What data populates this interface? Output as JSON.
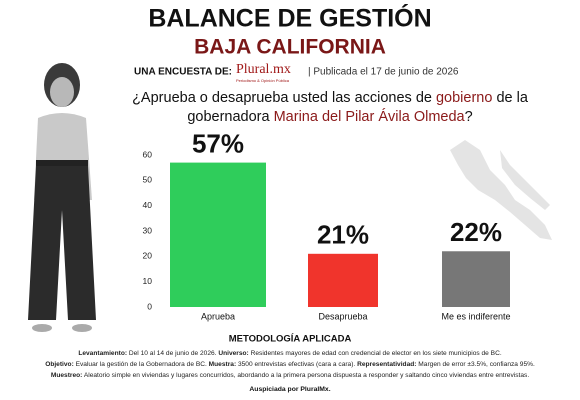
{
  "header": {
    "title": "BALANCE DE GESTIÓN",
    "subtitle": "BAJA CALIFORNIA",
    "survey_by": "UNA ENCUESTA DE:",
    "logo": "Plural.mx",
    "logo_tagline": "Periodismo & Opinión Pública",
    "published": "| Publicada el 17 de junio de 2026"
  },
  "question": {
    "lines": [
      [
        "¿Aprueba o desaprueba usted las acciones de ",
        "gobierno",
        " de la"
      ],
      [
        "gobernadora ",
        "Marina del Pilar Ávila Olmeda",
        "?"
      ]
    ],
    "highlight_color": "#8b1a1a"
  },
  "chart_data": {
    "type": "bar",
    "categories": [
      "Aprueba",
      "Desaprueba",
      "Me es indiferente"
    ],
    "values": [
      57,
      21,
      22
    ],
    "value_labels": [
      "57%",
      "21%",
      "22%"
    ],
    "colors": [
      "#2fcd5b",
      "#f0342c",
      "#777777"
    ],
    "ylim": [
      0,
      60
    ],
    "yticks": [
      0,
      10,
      20,
      30,
      40,
      50,
      60
    ],
    "grid": false
  },
  "methodology": {
    "title": "METODOLOGÍA APLICADA",
    "lines": [
      [
        {
          "label": "Levantamiento:",
          "text": " Del 10 al 14 de junio de 2026. "
        },
        {
          "label": "Universo:",
          "text": " Residentes mayores de edad con credencial de elector en los siete municipios de BC."
        }
      ],
      [
        {
          "label": "Objetivo:",
          "text": " Evaluar la gestión de la Gobernadora de BC. "
        },
        {
          "label": "Muestra:",
          "text": " 3500 entrevistas efectivas (cara a cara). "
        },
        {
          "label": "Representatividad:",
          "text": " Margen de error ±3.5%, confianza 95%."
        }
      ],
      [
        {
          "label": "Muestreo:",
          "text": " Aleatorio simple en viviendas y lugares concurridos, abordando a la primera persona dispuesta a responder y saltando cinco viviendas entre entrevistas."
        }
      ]
    ],
    "sponsor": "Auspiciada por PluralMx."
  }
}
